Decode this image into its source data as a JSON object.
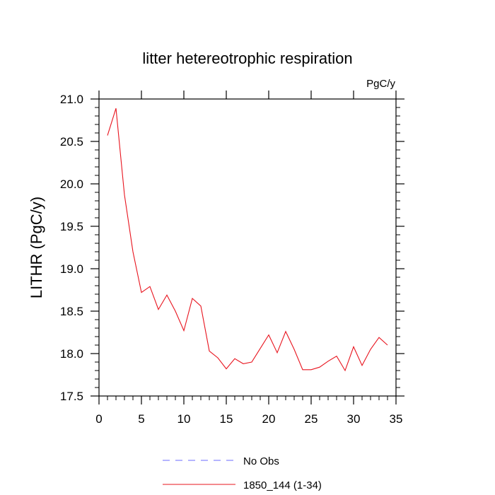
{
  "chart_data": {
    "type": "line",
    "title": "litter hetereotrophic respiration",
    "units_label": "PgC/y",
    "xlabel": "",
    "ylabel": "LITHR  (PgC/y)",
    "xlim": [
      0,
      35
    ],
    "ylim": [
      17.5,
      21.0
    ],
    "x_ticks": [
      0,
      5,
      10,
      15,
      20,
      25,
      30,
      35
    ],
    "x_tick_labels": [
      "0",
      "5",
      "10",
      "15",
      "20",
      "25",
      "30",
      "35"
    ],
    "y_ticks": [
      17.5,
      18.0,
      18.5,
      19.0,
      19.5,
      20.0,
      20.5,
      21.0
    ],
    "y_tick_labels": [
      "17.5",
      "18.0",
      "18.5",
      "19.0",
      "19.5",
      "20.0",
      "20.5",
      "21.0"
    ],
    "grid": false,
    "legend_position": "bottom",
    "legend": [
      {
        "label": "No Obs",
        "color": "#6b6bff",
        "style": "dashed"
      },
      {
        "label": "1850_144 (1-34)",
        "color": "#e8141e",
        "style": "solid"
      }
    ],
    "series": [
      {
        "name": "1850_144 (1-34)",
        "color": "#e8141e",
        "x": [
          1,
          2,
          3,
          4,
          5,
          6,
          7,
          8,
          9,
          10,
          11,
          12,
          13,
          14,
          15,
          16,
          17,
          18,
          19,
          20,
          21,
          22,
          23,
          24,
          25,
          26,
          27,
          28,
          29,
          30,
          31,
          32,
          33,
          34
        ],
        "values": [
          20.57,
          20.89,
          19.87,
          19.2,
          18.72,
          18.79,
          18.52,
          18.69,
          18.5,
          18.27,
          18.65,
          18.56,
          18.03,
          17.95,
          17.82,
          17.94,
          17.88,
          17.9,
          18.06,
          18.22,
          18.01,
          18.26,
          18.05,
          17.81,
          17.81,
          17.84,
          17.91,
          17.97,
          17.8,
          18.08,
          17.86,
          18.05,
          18.19,
          18.1
        ]
      }
    ]
  }
}
